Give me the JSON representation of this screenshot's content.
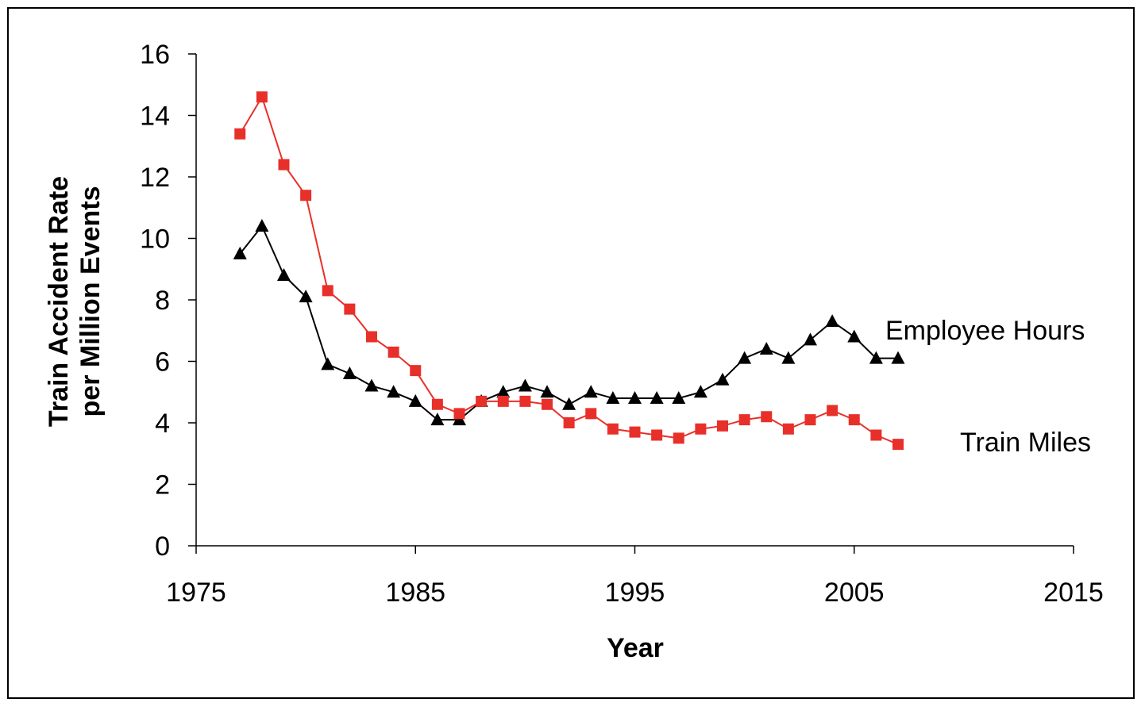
{
  "chart_data": {
    "type": "line",
    "title": "",
    "xlabel": "Year",
    "ylabel_lines": [
      "Train Accident Rate",
      "per Million Events"
    ],
    "xlim": [
      1975,
      2015
    ],
    "ylim": [
      0,
      16
    ],
    "x_ticks": [
      1975,
      1985,
      1995,
      2005,
      2015
    ],
    "y_ticks": [
      0,
      2,
      4,
      6,
      8,
      10,
      12,
      14,
      16
    ],
    "grid": false,
    "legend": "none (series labeled directly at right end of lines)",
    "x": [
      1977,
      1978,
      1979,
      1980,
      1981,
      1982,
      1983,
      1984,
      1985,
      1986,
      1987,
      1988,
      1989,
      1990,
      1991,
      1992,
      1993,
      1994,
      1995,
      1996,
      1997,
      1998,
      1999,
      2000,
      2001,
      2002,
      2003,
      2004,
      2005,
      2006,
      2007
    ],
    "series": [
      {
        "name": "Employee Hours",
        "color": "#000000",
        "marker": "triangle",
        "values": [
          9.5,
          10.4,
          8.8,
          8.1,
          5.9,
          5.6,
          5.2,
          5.0,
          4.7,
          4.1,
          4.1,
          4.7,
          5.0,
          5.2,
          5.0,
          4.6,
          5.0,
          4.8,
          4.8,
          4.8,
          4.8,
          5.0,
          5.4,
          6.1,
          6.4,
          6.1,
          6.7,
          7.3,
          6.8,
          6.1,
          6.1
        ]
      },
      {
        "name": "Train Miles",
        "color": "#e8302a",
        "marker": "square",
        "values": [
          13.4,
          14.6,
          12.4,
          11.4,
          8.3,
          7.7,
          6.8,
          6.3,
          5.7,
          4.6,
          4.3,
          4.7,
          4.7,
          4.7,
          4.6,
          4.0,
          4.3,
          3.8,
          3.7,
          3.6,
          3.5,
          3.8,
          3.9,
          4.1,
          4.2,
          3.8,
          4.1,
          4.4,
          4.1,
          3.6,
          3.3
        ]
      }
    ]
  }
}
